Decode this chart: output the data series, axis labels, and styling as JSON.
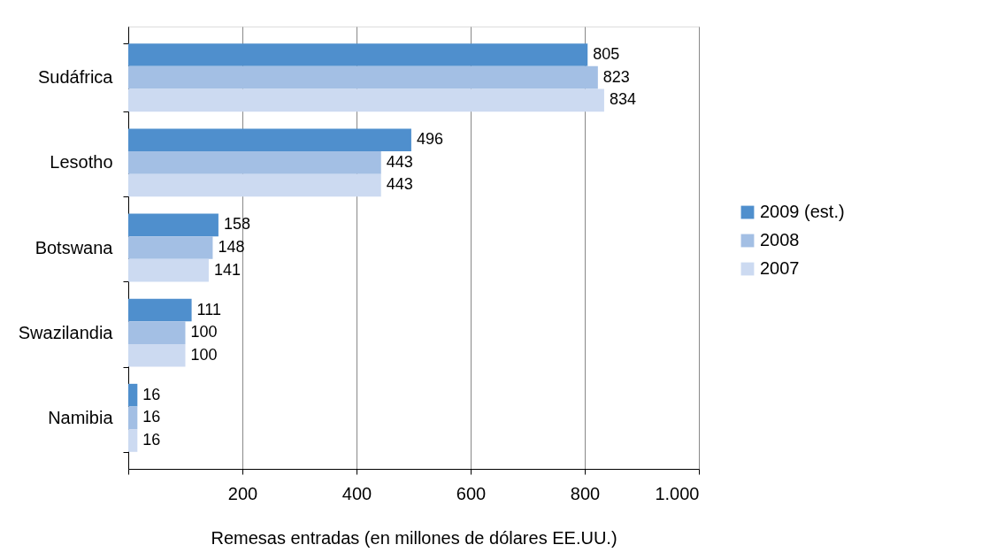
{
  "chart_data": {
    "type": "bar",
    "orientation": "horizontal",
    "xlabel": "Remesas entradas (en millones de dólares EE.UU.)",
    "categories": [
      "Sudáfrica",
      "Lesotho",
      "Botswana",
      "Swazilandia",
      "Namibia"
    ],
    "series": [
      {
        "name": "2009 (est.)",
        "color": "#4f8fcd",
        "values": [
          805,
          496,
          158,
          111,
          16
        ]
      },
      {
        "name": "2008",
        "color": "#a3bfe4",
        "values": [
          823,
          443,
          148,
          100,
          16
        ]
      },
      {
        "name": "2007",
        "color": "#ccdaf1",
        "values": [
          834,
          443,
          141,
          100,
          16
        ]
      }
    ],
    "xlim": [
      0,
      1000
    ],
    "xticks": [
      {
        "value": 0,
        "label": null
      },
      200,
      400,
      600,
      800,
      {
        "value": 1000,
        "label": "1.000"
      }
    ],
    "grid": "x",
    "legend": "right",
    "data_labels": true
  }
}
